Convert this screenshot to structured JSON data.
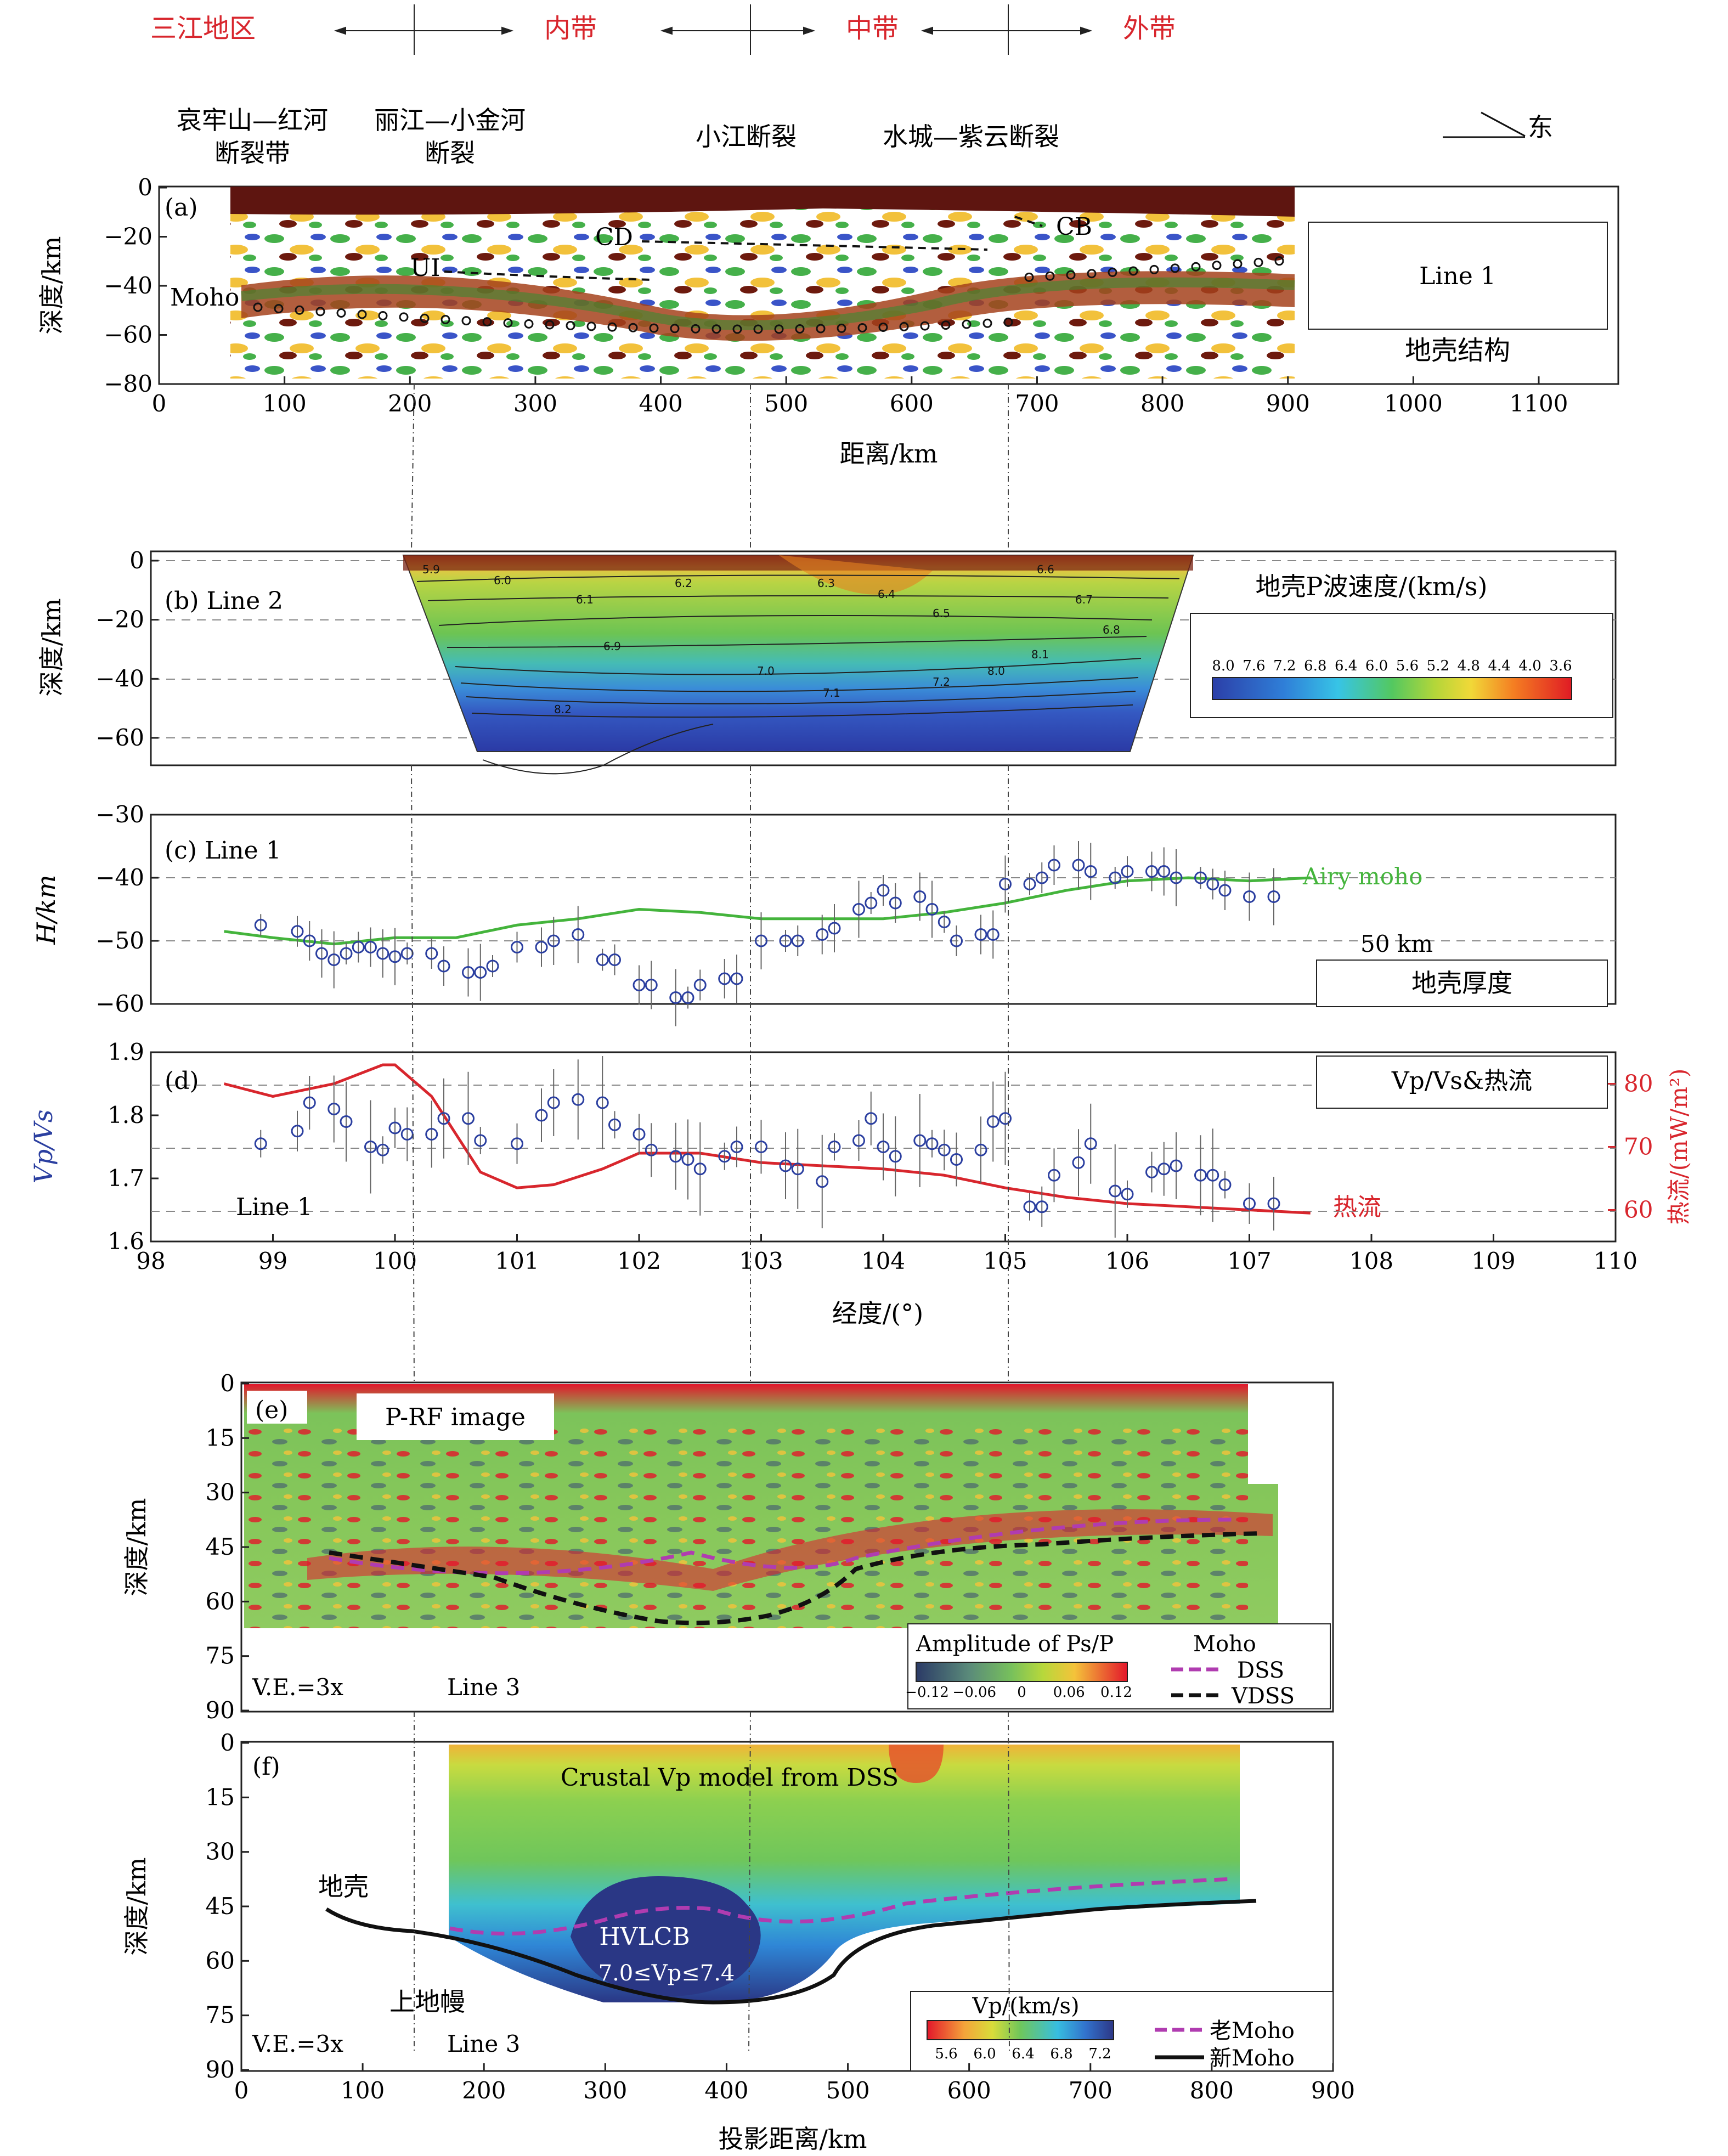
{
  "zones": {
    "sanjiang": "三江地区",
    "inner": "内带",
    "middle": "中带",
    "outer": "外带"
  },
  "faults": {
    "ailao_1": "哀牢山—红河",
    "ailao_2": "断裂带",
    "lijiang_1": "丽江—小金河",
    "lijiang_2": "断裂",
    "xiaojiang": "小江断裂",
    "shuicheng": "水城—紫云断裂",
    "east": "东"
  },
  "colors": {
    "zone_text": "#d8262d",
    "heatflow": "#d8262d",
    "airy": "#44b43c",
    "vpvs_axis": "#2b3fa0",
    "dss_moho": "#b03cb0"
  },
  "panel_a": {
    "label": "(a)",
    "line": "Line 1",
    "title": "地壳结构",
    "moho": "Moho",
    "cd": "CD",
    "cb": "CB",
    "ui": "UI",
    "ylabel": "深度/km",
    "xlabel": "距离/km",
    "yticks": [
      "0",
      "−20",
      "−40",
      "−60",
      "−80"
    ],
    "xticks": [
      "0",
      "100",
      "200",
      "300",
      "400",
      "500",
      "600",
      "700",
      "800",
      "900",
      "1000",
      "1100"
    ]
  },
  "panel_b": {
    "label": "(b) Line 2",
    "ylabel": "深度/km",
    "yticks": [
      "0",
      "−20",
      "−40",
      "−60"
    ],
    "legend_title": "地壳P波速度/(km/s)",
    "legend_ticks": [
      "8.0",
      "7.6",
      "7.2",
      "6.8",
      "6.4",
      "6.0",
      "5.6",
      "5.2",
      "4.8",
      "4.4",
      "4.0",
      "3.6"
    ],
    "contours": [
      {
        "v": "5.9"
      },
      {
        "v": "6.0"
      },
      {
        "v": "6.1"
      },
      {
        "v": "6.2"
      },
      {
        "v": "6.3"
      },
      {
        "v": "6.4"
      },
      {
        "v": "6.5"
      },
      {
        "v": "6.6"
      },
      {
        "v": "6.7"
      },
      {
        "v": "6.8"
      },
      {
        "v": "6.9"
      },
      {
        "v": "7.0"
      },
      {
        "v": "7.1"
      },
      {
        "v": "7.2"
      },
      {
        "v": "8.0"
      },
      {
        "v": "8.1"
      },
      {
        "v": "8.2"
      }
    ]
  },
  "panel_c": {
    "label": "(c) Line 1",
    "ylabel": "H/km",
    "yticks": [
      "−30",
      "−40",
      "−50",
      "−60"
    ],
    "airy": "Airy moho",
    "km50": "50 km",
    "box": "地壳厚度"
  },
  "panel_d": {
    "label": "(d)",
    "line": "Line 1",
    "heat": "热流",
    "box": "Vp/Vs&热流",
    "ylabel": "Vp/Vs",
    "y2label": "热流/(mW/m²)",
    "xlabel": "经度/(°)",
    "yticks": [
      "1.9",
      "1.8",
      "1.7",
      "1.6"
    ],
    "y2ticks": [
      "80",
      "70",
      "60"
    ],
    "xticks": [
      "98",
      "99",
      "100",
      "101",
      "102",
      "103",
      "104",
      "105",
      "106",
      "107",
      "108",
      "109",
      "110"
    ]
  },
  "panel_e": {
    "label": "(e)",
    "title": "P-RF image",
    "ve": "V.E.=3x",
    "line": "Line 3",
    "ylabel": "深度/km",
    "yticks": [
      "0",
      "15",
      "30",
      "45",
      "60",
      "75",
      "90"
    ],
    "amp_title": "Amplitude of Ps/P",
    "amp_ticks": [
      "−0.12",
      "−0.06",
      "0",
      "0.06",
      "0.12"
    ],
    "moho": "Moho",
    "dss": "DSS",
    "vdss": "VDSS"
  },
  "panel_f": {
    "label": "(f)",
    "title": "Crustal Vp model from DSS",
    "crust": "地壳",
    "mantle": "上地幔",
    "hvlcb": "HVLCB",
    "hvlcb_range": "7.0≤Vp≤7.4",
    "ve": "V.E.=3x",
    "line": "Line 3",
    "ylabel": "深度/km",
    "xlabel": "投影距离/km",
    "yticks": [
      "0",
      "15",
      "30",
      "45",
      "60",
      "75",
      "90"
    ],
    "xticks": [
      "0",
      "100",
      "200",
      "300",
      "400",
      "500",
      "600",
      "700",
      "800",
      "900"
    ],
    "vp_title": "Vp/(km/s)",
    "vp_ticks": [
      "5.6",
      "6.0",
      "6.4",
      "6.8",
      "7.2"
    ],
    "old_moho": "老Moho",
    "new_moho": "新Moho"
  },
  "chart_data": [
    {
      "type": "scatter",
      "panel": "c",
      "xlabel": "",
      "ylabel": "H/km",
      "ylim": [
        -60,
        -30
      ],
      "series": [
        {
          "name": "",
          "x": [
            98.9,
            99.2,
            99.3,
            99.4,
            99.5,
            99.6,
            99.7,
            99.8,
            99.9,
            100.0,
            100.1,
            100.3,
            100.4,
            100.6,
            100.7,
            100.8,
            101.0,
            101.2,
            101.3,
            101.5,
            101.7,
            101.8,
            102.0,
            102.1,
            102.3,
            102.4,
            102.5,
            102.7,
            102.8,
            103.0,
            103.2,
            103.3,
            103.5,
            103.6,
            103.8,
            103.9,
            104.0,
            104.1,
            104.3,
            104.4,
            104.5,
            104.6,
            104.8,
            104.9,
            105.0,
            105.2,
            105.3,
            105.4,
            105.6,
            105.7,
            105.9,
            106.0,
            106.2,
            106.3,
            106.4,
            106.6,
            106.7,
            106.8,
            107.0,
            107.2
          ],
          "y": [
            -47.5,
            -48.5,
            -50,
            -52,
            -53,
            -52,
            -51,
            -51,
            -52,
            -52.5,
            -52,
            -52,
            -54,
            -55,
            -55,
            -54,
            -51,
            -51,
            -50,
            -49,
            -53,
            -53,
            -57,
            -57,
            -59,
            -59,
            -57,
            -56,
            -56,
            -50,
            -50,
            -50,
            -49,
            -48,
            -45,
            -44,
            -42,
            -44,
            -43,
            -45,
            -47,
            -50,
            -49,
            -49,
            -41,
            -41,
            -40,
            -38,
            -38,
            -39,
            -40,
            -39,
            -39,
            -39,
            -40,
            -40,
            -41,
            -42,
            -43,
            -43
          ]
        }
      ]
    },
    {
      "type": "line",
      "panel": "c",
      "series": [
        {
          "name": "Airy moho",
          "x": [
            98.6,
            99.0,
            99.5,
            100.0,
            100.5,
            101.0,
            101.5,
            102.0,
            102.5,
            103.0,
            103.5,
            104.0,
            104.5,
            105.0,
            105.5,
            106.0,
            106.5,
            107.0,
            107.5
          ],
          "y": [
            -48.5,
            -49.5,
            -50.5,
            -49.5,
            -49.5,
            -47.5,
            -46.5,
            -45,
            -45.5,
            -46.5,
            -46.5,
            -46.5,
            -45.5,
            -44,
            -42,
            -40.5,
            -40,
            -40.5,
            -40
          ]
        }
      ]
    },
    {
      "type": "scatter",
      "panel": "d",
      "ylabel": "Vp/Vs",
      "ylim": [
        1.6,
        1.9
      ],
      "series": [
        {
          "name": "",
          "x": [
            98.9,
            99.2,
            99.3,
            99.5,
            99.6,
            99.8,
            99.9,
            100.0,
            100.1,
            100.3,
            100.4,
            100.6,
            100.7,
            101.0,
            101.2,
            101.3,
            101.5,
            101.7,
            101.8,
            102.0,
            102.1,
            102.3,
            102.4,
            102.5,
            102.7,
            102.8,
            103.0,
            103.2,
            103.3,
            103.5,
            103.6,
            103.8,
            103.9,
            104.0,
            104.1,
            104.3,
            104.4,
            104.5,
            104.6,
            104.8,
            104.9,
            105.0,
            105.2,
            105.3,
            105.4,
            105.6,
            105.7,
            105.9,
            106.0,
            106.2,
            106.3,
            106.4,
            106.6,
            106.7,
            106.8,
            107.0,
            107.2
          ],
          "y": [
            1.755,
            1.775,
            1.82,
            1.81,
            1.79,
            1.75,
            1.745,
            1.78,
            1.77,
            1.77,
            1.795,
            1.795,
            1.76,
            1.755,
            1.8,
            1.82,
            1.825,
            1.82,
            1.785,
            1.77,
            1.745,
            1.735,
            1.73,
            1.715,
            1.735,
            1.75,
            1.75,
            1.72,
            1.715,
            1.695,
            1.75,
            1.76,
            1.795,
            1.75,
            1.735,
            1.76,
            1.755,
            1.745,
            1.73,
            1.745,
            1.79,
            1.795,
            1.655,
            1.655,
            1.705,
            1.725,
            1.755,
            1.68,
            1.675,
            1.71,
            1.715,
            1.72,
            1.705,
            1.705,
            1.69,
            1.66,
            1.66
          ]
        }
      ]
    },
    {
      "type": "line",
      "panel": "d",
      "ylabel": "热流/(mW/m²)",
      "ylim": [
        55,
        85
      ],
      "series": [
        {
          "name": "热流",
          "x": [
            98.6,
            99.0,
            99.5,
            99.9,
            100.0,
            100.3,
            100.7,
            101.0,
            101.3,
            101.7,
            102.0,
            102.5,
            103.0,
            103.5,
            104.0,
            104.5,
            105.0,
            105.5,
            106.0,
            106.5,
            107.0,
            107.5
          ],
          "y": [
            80,
            78,
            80,
            83,
            83,
            78,
            66,
            63.5,
            64,
            66.5,
            69,
            69,
            67.5,
            67,
            66.5,
            65.5,
            63.5,
            62,
            61,
            60.5,
            60,
            59.5
          ]
        }
      ]
    }
  ]
}
